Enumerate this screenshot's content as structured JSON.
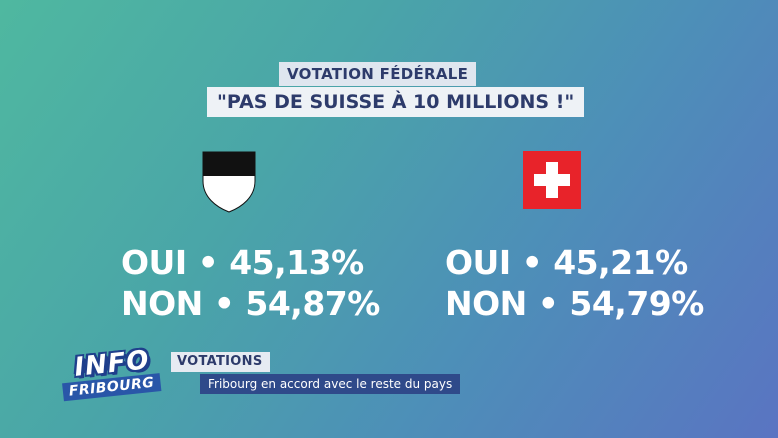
{
  "header": {
    "kicker": "VOTATION FÉDÉRALE",
    "headline": "\"PAS DE SUISSE À 10 MILLIONS !\""
  },
  "left": {
    "icon": "fribourg-coat-of-arms",
    "oui": "OUI • 45,13%",
    "non": "NON • 54,87%"
  },
  "right": {
    "icon": "swiss-flag",
    "oui": "OUI • 45,21%",
    "non": "NON • 54,79%"
  },
  "logo": {
    "line1": "INFO",
    "line2": "FRIBOURG"
  },
  "lower_third": {
    "label": "VOTATIONS",
    "subtitle": "Fribourg en accord avec le reste du pays"
  },
  "colors": {
    "title_text": "#2d3b6b",
    "flag_red": "#e8232a",
    "logo_blue": "#2956a8"
  }
}
